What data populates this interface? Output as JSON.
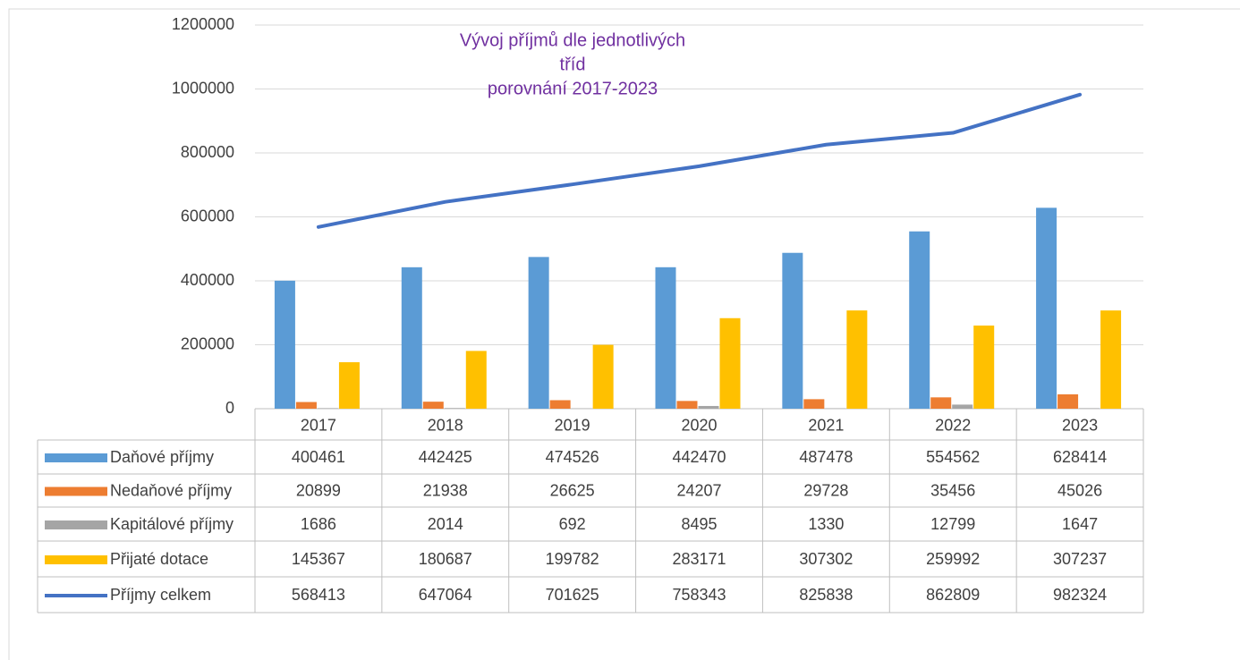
{
  "chart_data": {
    "type": "bar",
    "title": [
      "Vývoj příjmů dle jednotlivých",
      "tříd",
      "porovnání 2017-2023"
    ],
    "title_color": "#7030a0",
    "categories": [
      "2017",
      "2018",
      "2019",
      "2020",
      "2021",
      "2022",
      "2023"
    ],
    "series": [
      {
        "name": "Daňové příjmy",
        "type": "bar",
        "color": "#5b9bd5",
        "values": [
          400461,
          442425,
          474526,
          442470,
          487478,
          554562,
          628414
        ]
      },
      {
        "name": "Nedaňové příjmy",
        "type": "bar",
        "color": "#ed7d31",
        "values": [
          20899,
          21938,
          26625,
          24207,
          29728,
          35456,
          45026
        ]
      },
      {
        "name": "Kapitálové příjmy",
        "type": "bar",
        "color": "#a5a5a5",
        "values": [
          1686,
          2014,
          692,
          8495,
          1330,
          12799,
          1647
        ]
      },
      {
        "name": "Přijaté dotace",
        "type": "bar",
        "color": "#ffc000",
        "values": [
          145367,
          180687,
          199782,
          283171,
          307302,
          259992,
          307237
        ]
      },
      {
        "name": "Příjmy celkem",
        "type": "line",
        "color": "#4472c4",
        "values": [
          568413,
          647064,
          701625,
          758343,
          825838,
          862809,
          982324
        ]
      }
    ],
    "ylim": [
      0,
      1200000
    ],
    "yticks": [
      0,
      200000,
      400000,
      600000,
      800000,
      1000000,
      1200000
    ],
    "grid": true
  }
}
